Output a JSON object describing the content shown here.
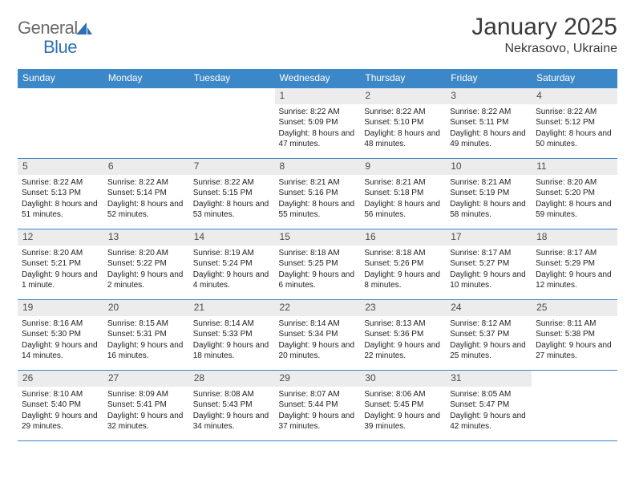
{
  "logo": {
    "text1": "General",
    "text2": "Blue"
  },
  "title": "January 2025",
  "location": "Nekrasovo, Ukraine",
  "colors": {
    "header_bg": "#3c87c7",
    "header_text": "#ffffff",
    "daynum_bg": "#ececec",
    "border": "#3c87c7",
    "page_bg": "#ffffff",
    "text": "#212121",
    "logo_gray": "#6b6b6b",
    "logo_blue": "#2f6fb3"
  },
  "weekdays": [
    "Sunday",
    "Monday",
    "Tuesday",
    "Wednesday",
    "Thursday",
    "Friday",
    "Saturday"
  ],
  "weeks": [
    [
      null,
      null,
      null,
      {
        "n": "1",
        "sr": "8:22 AM",
        "ss": "5:09 PM",
        "dl": "8 hours and 47 minutes."
      },
      {
        "n": "2",
        "sr": "8:22 AM",
        "ss": "5:10 PM",
        "dl": "8 hours and 48 minutes."
      },
      {
        "n": "3",
        "sr": "8:22 AM",
        "ss": "5:11 PM",
        "dl": "8 hours and 49 minutes."
      },
      {
        "n": "4",
        "sr": "8:22 AM",
        "ss": "5:12 PM",
        "dl": "8 hours and 50 minutes."
      }
    ],
    [
      {
        "n": "5",
        "sr": "8:22 AM",
        "ss": "5:13 PM",
        "dl": "8 hours and 51 minutes."
      },
      {
        "n": "6",
        "sr": "8:22 AM",
        "ss": "5:14 PM",
        "dl": "8 hours and 52 minutes."
      },
      {
        "n": "7",
        "sr": "8:22 AM",
        "ss": "5:15 PM",
        "dl": "8 hours and 53 minutes."
      },
      {
        "n": "8",
        "sr": "8:21 AM",
        "ss": "5:16 PM",
        "dl": "8 hours and 55 minutes."
      },
      {
        "n": "9",
        "sr": "8:21 AM",
        "ss": "5:18 PM",
        "dl": "8 hours and 56 minutes."
      },
      {
        "n": "10",
        "sr": "8:21 AM",
        "ss": "5:19 PM",
        "dl": "8 hours and 58 minutes."
      },
      {
        "n": "11",
        "sr": "8:20 AM",
        "ss": "5:20 PM",
        "dl": "8 hours and 59 minutes."
      }
    ],
    [
      {
        "n": "12",
        "sr": "8:20 AM",
        "ss": "5:21 PM",
        "dl": "9 hours and 1 minute."
      },
      {
        "n": "13",
        "sr": "8:20 AM",
        "ss": "5:22 PM",
        "dl": "9 hours and 2 minutes."
      },
      {
        "n": "14",
        "sr": "8:19 AM",
        "ss": "5:24 PM",
        "dl": "9 hours and 4 minutes."
      },
      {
        "n": "15",
        "sr": "8:18 AM",
        "ss": "5:25 PM",
        "dl": "9 hours and 6 minutes."
      },
      {
        "n": "16",
        "sr": "8:18 AM",
        "ss": "5:26 PM",
        "dl": "9 hours and 8 minutes."
      },
      {
        "n": "17",
        "sr": "8:17 AM",
        "ss": "5:27 PM",
        "dl": "9 hours and 10 minutes."
      },
      {
        "n": "18",
        "sr": "8:17 AM",
        "ss": "5:29 PM",
        "dl": "9 hours and 12 minutes."
      }
    ],
    [
      {
        "n": "19",
        "sr": "8:16 AM",
        "ss": "5:30 PM",
        "dl": "9 hours and 14 minutes."
      },
      {
        "n": "20",
        "sr": "8:15 AM",
        "ss": "5:31 PM",
        "dl": "9 hours and 16 minutes."
      },
      {
        "n": "21",
        "sr": "8:14 AM",
        "ss": "5:33 PM",
        "dl": "9 hours and 18 minutes."
      },
      {
        "n": "22",
        "sr": "8:14 AM",
        "ss": "5:34 PM",
        "dl": "9 hours and 20 minutes."
      },
      {
        "n": "23",
        "sr": "8:13 AM",
        "ss": "5:36 PM",
        "dl": "9 hours and 22 minutes."
      },
      {
        "n": "24",
        "sr": "8:12 AM",
        "ss": "5:37 PM",
        "dl": "9 hours and 25 minutes."
      },
      {
        "n": "25",
        "sr": "8:11 AM",
        "ss": "5:38 PM",
        "dl": "9 hours and 27 minutes."
      }
    ],
    [
      {
        "n": "26",
        "sr": "8:10 AM",
        "ss": "5:40 PM",
        "dl": "9 hours and 29 minutes."
      },
      {
        "n": "27",
        "sr": "8:09 AM",
        "ss": "5:41 PM",
        "dl": "9 hours and 32 minutes."
      },
      {
        "n": "28",
        "sr": "8:08 AM",
        "ss": "5:43 PM",
        "dl": "9 hours and 34 minutes."
      },
      {
        "n": "29",
        "sr": "8:07 AM",
        "ss": "5:44 PM",
        "dl": "9 hours and 37 minutes."
      },
      {
        "n": "30",
        "sr": "8:06 AM",
        "ss": "5:45 PM",
        "dl": "9 hours and 39 minutes."
      },
      {
        "n": "31",
        "sr": "8:05 AM",
        "ss": "5:47 PM",
        "dl": "9 hours and 42 minutes."
      },
      null
    ]
  ],
  "labels": {
    "sunrise": "Sunrise:",
    "sunset": "Sunset:",
    "daylight": "Daylight:"
  }
}
